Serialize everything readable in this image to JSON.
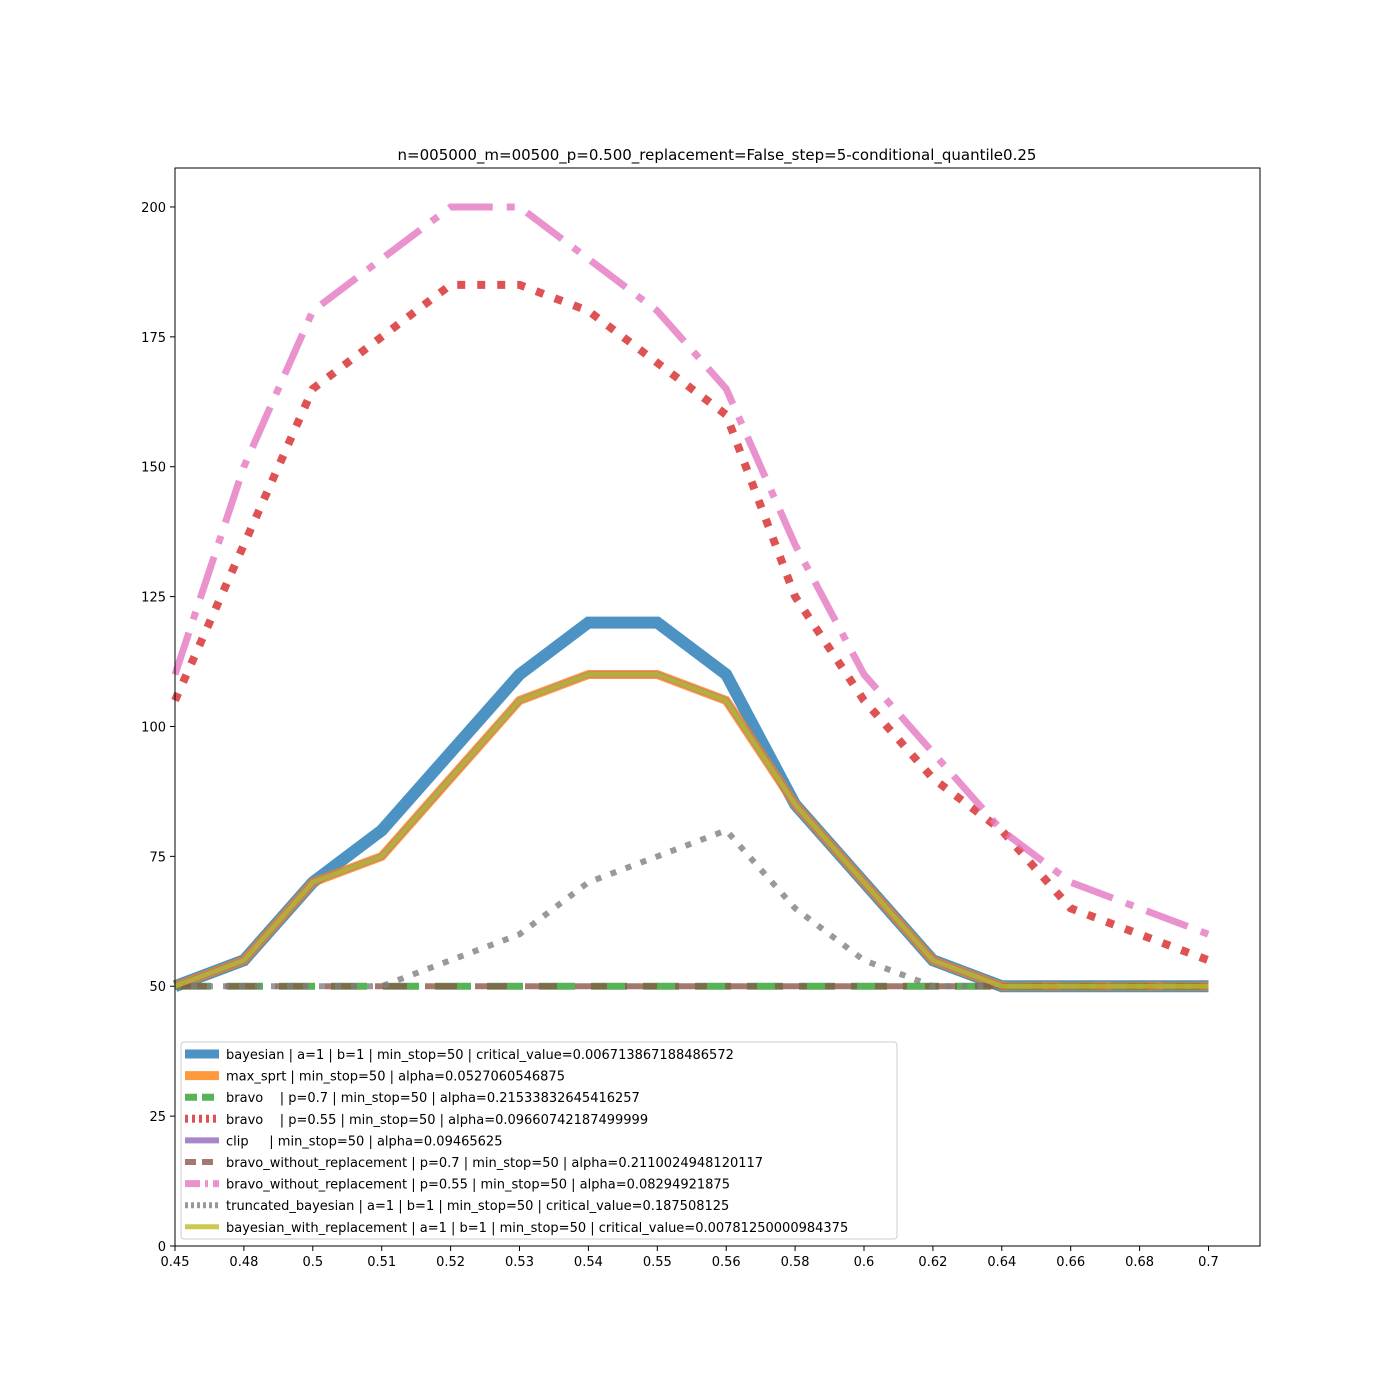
{
  "chart_data": {
    "type": "line",
    "title": "n=005000_m=00500_p=0.500_replacement=False_step=5-conditional_quantile0.25",
    "xlabel": "",
    "ylabel": "",
    "categories": [
      "0.45",
      "0.48",
      "0.5",
      "0.51",
      "0.52",
      "0.53",
      "0.54",
      "0.55",
      "0.56",
      "0.58",
      "0.6",
      "0.62",
      "0.64",
      "0.66",
      "0.68",
      "0.7"
    ],
    "ylim": [
      0,
      207.5
    ],
    "yticks": [
      0,
      25,
      50,
      75,
      100,
      125,
      150,
      175,
      200
    ],
    "grid": false,
    "legend_position": "lower-left",
    "series": [
      {
        "name": "bayesian | a=1 | b=1 | min_stop=50 | critical_value=0.006713867188486572",
        "color": "#1f77b4",
        "style": "solid",
        "values": [
          50,
          55,
          70,
          80,
          95,
          110,
          120,
          120,
          110,
          85,
          70,
          55,
          50,
          50,
          50,
          50
        ]
      },
      {
        "name": "max_sprt | min_stop=50 | alpha=0.0527060546875",
        "color": "#ff7f0e",
        "style": "solid",
        "values": [
          50,
          55,
          70,
          75,
          90,
          105,
          110,
          110,
          105,
          85,
          70,
          55,
          50,
          50,
          50,
          50
        ]
      },
      {
        "name": "bravo    | p=0.7 | min_stop=50 | alpha=0.21533832645416257",
        "color": "#2ca02c",
        "style": "dashed",
        "values": [
          50,
          50,
          50,
          50,
          50,
          50,
          50,
          50,
          50,
          50,
          50,
          50,
          50,
          50,
          50,
          50
        ]
      },
      {
        "name": "bravo    | p=0.55 | min_stop=50 | alpha=0.09660742187499999",
        "color": "#d62728",
        "style": "dotted",
        "values": [
          105,
          135,
          165,
          175,
          185,
          185,
          180,
          170,
          160,
          125,
          105,
          90,
          80,
          65,
          60,
          55
        ]
      },
      {
        "name": "clip     | min_stop=50 | alpha=0.09465625",
        "color": "#9467bd",
        "style": "solid",
        "values": [
          50,
          55,
          70,
          75,
          90,
          105,
          110,
          110,
          105,
          85,
          70,
          55,
          50,
          50,
          50,
          50
        ]
      },
      {
        "name": "bravo_without_replacement | p=0.7 | min_stop=50 | alpha=0.2110024948120117",
        "color": "#8c564b",
        "style": "dashed",
        "values": [
          50,
          50,
          50,
          50,
          50,
          50,
          50,
          50,
          50,
          50,
          50,
          50,
          50,
          50,
          50,
          50
        ]
      },
      {
        "name": "bravo_without_replacement | p=0.55 | min_stop=50 | alpha=0.08294921875",
        "color": "#e377c2",
        "style": "dashdot",
        "values": [
          110,
          150,
          180,
          190,
          200,
          200,
          190,
          180,
          165,
          135,
          110,
          95,
          80,
          70,
          65,
          60
        ]
      },
      {
        "name": "truncated_bayesian | a=1 | b=1 | min_stop=50 | critical_value=0.187508125",
        "color": "#7f7f7f",
        "style": "dotted",
        "values": [
          50,
          50,
          50,
          50,
          55,
          60,
          70,
          75,
          80,
          65,
          55,
          50,
          50,
          50,
          50,
          50
        ]
      },
      {
        "name": "bayesian_with_replacement | a=1 | b=1 | min_stop=50 | critical_value=0.00781250000984375",
        "color": "#bcbd22",
        "style": "solid",
        "values": [
          50,
          55,
          70,
          75,
          90,
          105,
          110,
          110,
          105,
          85,
          70,
          55,
          50,
          50,
          50,
          50
        ]
      }
    ]
  }
}
